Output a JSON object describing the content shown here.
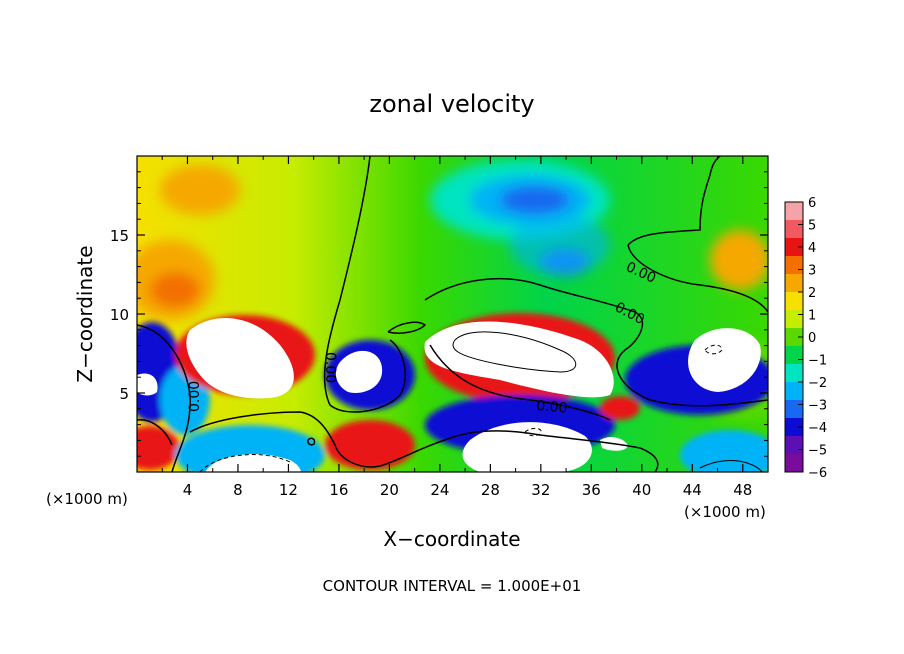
{
  "chart_data": {
    "type": "heatmap",
    "title": "zonal velocity",
    "xlabel": "X−coordinate",
    "ylabel": "Z−coordinate",
    "x_unit_label": "(×1000 m)",
    "z_unit_label": "(×1000 m)",
    "footer": "CONTOUR INTERVAL = 1.000E+01",
    "xlim": [
      0,
      50
    ],
    "ylim": [
      0,
      20
    ],
    "x_ticks": [
      4,
      8,
      12,
      16,
      20,
      24,
      28,
      32,
      36,
      40,
      44,
      48
    ],
    "x_tick_labels": [
      "4",
      "8",
      "12",
      "16",
      "20",
      "24",
      "28",
      "32",
      "36",
      "40",
      "44",
      "48"
    ],
    "y_ticks": [
      5,
      10,
      15
    ],
    "y_tick_labels": [
      "5",
      "10",
      "15"
    ],
    "colorbar": {
      "min": -6,
      "max": 6,
      "ticks": [
        6,
        5,
        4,
        3,
        2,
        1,
        0,
        -1,
        -2,
        -3,
        -4,
        -5,
        -6
      ],
      "tick_labels": [
        "6",
        "5",
        "4",
        "3",
        "2",
        "1",
        "0",
        "−1",
        "−2",
        "−3",
        "−4",
        "−5",
        "−6"
      ],
      "colors": [
        "#f4a3a8",
        "#f25a62",
        "#e81414",
        "#f37000",
        "#f5a800",
        "#f6e000",
        "#c6ec00",
        "#5ad800",
        "#00d44a",
        "#00e4c0",
        "#00b2f6",
        "#1868f0",
        "#0c0cd4",
        "#5c10b4",
        "#7a0c9c"
      ]
    },
    "contour_labels": [
      "0.00",
      "0.00",
      "0.00",
      "0.00",
      "0.00"
    ]
  }
}
